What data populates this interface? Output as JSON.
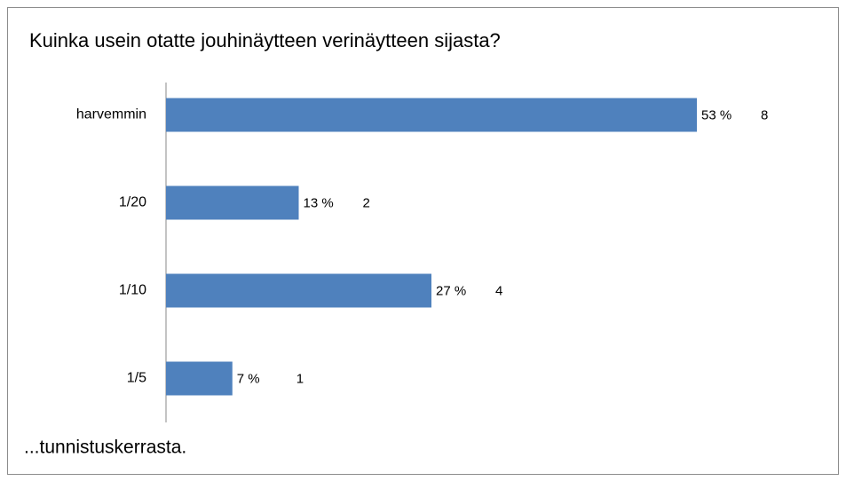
{
  "chart_data": {
    "type": "bar",
    "orientation": "horizontal",
    "title": "Kuinka usein otatte jouhinäytteen verinäytteen sijasta?",
    "footnote": "...tunnistuskerrasta.",
    "categories": [
      "harvemmin",
      "1/20",
      "1/10",
      "1/5"
    ],
    "values": [
      8,
      2,
      4,
      1
    ],
    "percents": [
      53,
      13,
      27,
      7
    ],
    "percent_labels": [
      "53 %",
      "13 %",
      "27 %",
      "7 %"
    ],
    "color": "#4f81bd"
  }
}
